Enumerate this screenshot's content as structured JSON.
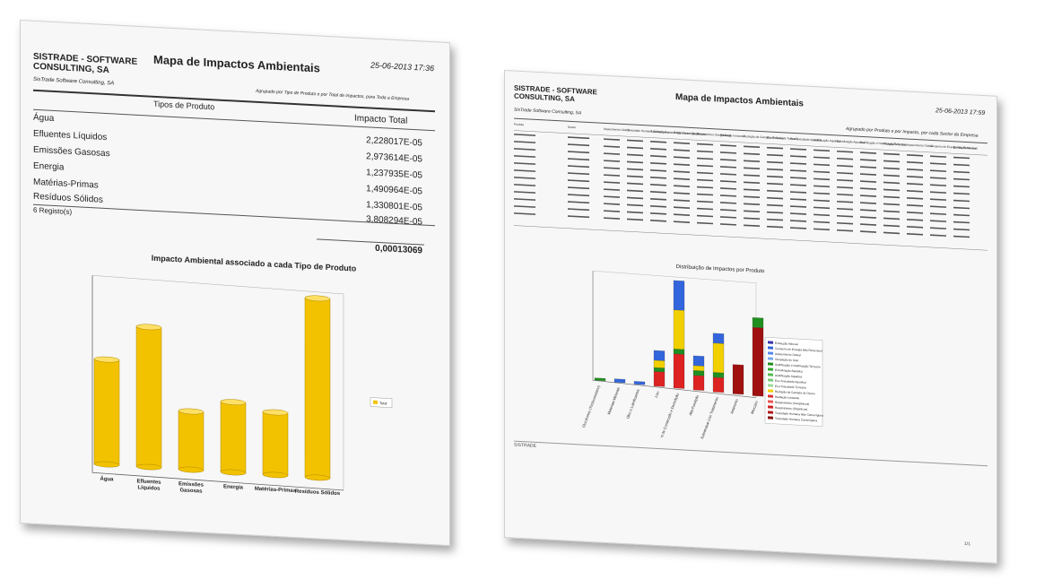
{
  "left": {
    "company": "SISTRADE - SOFTWARE CONSULTING, SA",
    "title": "Mapa de Impactos Ambientais",
    "date": "25-06-2013 17:36",
    "company_sub": "SisTrade Software Consulting, SA",
    "grouping": "Agrupado por Tipo de Produto e por Total de impactos, para Toda a Empresa",
    "col1": "Tipos de Produto",
    "col2": "Impacto Total",
    "rows": [
      {
        "name": "Água",
        "value": "2,228017E-05"
      },
      {
        "name": "Efluentes Líquidos",
        "value": "2,973614E-05"
      },
      {
        "name": "Emissões Gasosas",
        "value": "1,237935E-05"
      },
      {
        "name": "Energia",
        "value": "1,490964E-05"
      },
      {
        "name": "Matérias-Primas",
        "value": "1,330801E-05"
      },
      {
        "name": "Resíduos Sólidos",
        "value": "3,808294E-05"
      }
    ],
    "records": "6 Registo(s)",
    "total": "0,00013069"
  },
  "left_chart": {
    "type": "bar",
    "title": "Impacto Ambiental associado a cada Tipo de Produto",
    "categories": [
      "Água",
      "Efluentes Líquidos",
      "Emissões Gasosas",
      "Energia",
      "Matérias-Primas",
      "Resíduos Sólidos"
    ],
    "series": [
      {
        "name": "Total",
        "values": [
          2.228017e-05,
          2.973614e-05,
          1.237935e-05,
          1.490964e-05,
          1.330801e-05,
          3.808294e-05
        ]
      }
    ],
    "color": "#f2c200"
  },
  "right": {
    "company": "SISTRADE - SOFTWARE CONSULTING, SA",
    "title": "Mapa de Impactos Ambientais",
    "date": "25-06-2013 17:59",
    "company_sub": "SisTrade Software Consulting, SA",
    "grouping": "Agrupado por Produto e por Impacto, por cada Sector da Empresa",
    "headers": [
      "Produto",
      "Sector",
      "Aquecimento Global",
      "Toxicidade Humana Cancerígena",
      "Toxicidade Humana Não Cancerígena",
      "Respiratórios (Orgânicos)",
      "Respiratórios (Inorgânicos)",
      "Radiação Ionizante",
      "Redução da Camada de Ozono",
      "Eco-Toxicidade Terrestre",
      "Eco-Toxicidade Aquática",
      "Acidificação Aquática",
      "Eutrofização Aquática",
      "Acidificação e Nutrificação Terrestre",
      "Ocupação do Solo",
      "Aquecimento Global",
      "Consumo de Energia Não Renovável",
      "Extracção Mineral"
    ],
    "chart_title": "Distribuição de Impactos por Produto",
    "footer_left": "SISTRADE",
    "footer_right": "1/1"
  },
  "right_chart": {
    "type": "bar",
    "title": "Distribuição de Impactos por Produto",
    "categories": [
      "Cloroformio (Triclorometano)",
      "Materiais Minerais",
      "Oleo e Lubrificantes",
      "Lixo",
      "Residuos de Construção e Demolição",
      "Alta Fundição",
      "Garrafão Sobrandear Lixo Tratamento",
      "Antimonio",
      "Mercúrio"
    ],
    "legend": [
      "Extracção Mineral",
      "Consumo de Energia Não Renovável",
      "Aquecimento Global",
      "Ocupação do Solo",
      "Acidificação e Nutrificação Terrestre",
      "Eutrofização Aquática",
      "Acidificação Aquática",
      "Eco-Toxicidade Aquática",
      "Eco-Toxicidade Terrestre",
      "Redução da Camada de Ozono",
      "Radiação Ionizante",
      "Respiratórios (Inorgânicos)",
      "Respiratórios (Orgânicos)",
      "Toxicidade Humana Não Cancerígena",
      "Toxicidade Humana Cancerígena"
    ],
    "stacks": [
      [
        {
          "c": "#1f8f1f",
          "v": 0.5
        }
      ],
      [
        {
          "c": "#3366dd",
          "v": 0.7
        }
      ],
      [
        {
          "c": "#3366dd",
          "v": 0.6
        }
      ],
      [
        {
          "c": "#dd2222",
          "v": 3
        },
        {
          "c": "#1f8f1f",
          "v": 0.8
        },
        {
          "c": "#f2d000",
          "v": 1.5
        },
        {
          "c": "#3366dd",
          "v": 2
        }
      ],
      [
        {
          "c": "#dd2222",
          "v": 7
        },
        {
          "c": "#1f8f1f",
          "v": 1
        },
        {
          "c": "#f2d000",
          "v": 8
        },
        {
          "c": "#3366dd",
          "v": 6
        }
      ],
      [
        {
          "c": "#dd2222",
          "v": 3
        },
        {
          "c": "#1f8f1f",
          "v": 1
        },
        {
          "c": "#f2d000",
          "v": 1
        },
        {
          "c": "#3366dd",
          "v": 2
        }
      ],
      [
        {
          "c": "#dd2222",
          "v": 3
        },
        {
          "c": "#1f8f1f",
          "v": 1
        },
        {
          "c": "#f2d000",
          "v": 6
        },
        {
          "c": "#3366dd",
          "v": 2
        }
      ],
      [
        {
          "c": "#a01010",
          "v": 6
        }
      ],
      [
        {
          "c": "#a01010",
          "v": 14
        },
        {
          "c": "#1f8f1f",
          "v": 2
        }
      ]
    ],
    "legend_colors": [
      "#3333aa",
      "#3366dd",
      "#5588ee",
      "#77aaee",
      "#1f8f1f",
      "#33aa33",
      "#55bb55",
      "#77cc77",
      "#99dd99",
      "#f2d000",
      "#dd3333",
      "#e85555",
      "#cc2222",
      "#b01818",
      "#8a1010"
    ]
  }
}
